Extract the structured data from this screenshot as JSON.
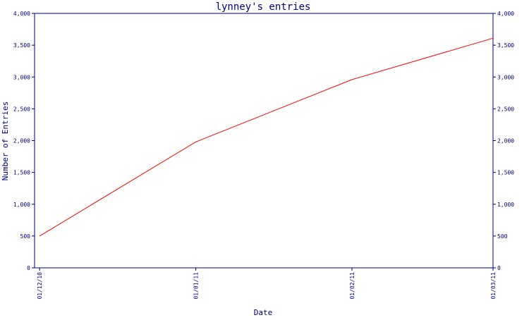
{
  "chart_data": {
    "type": "line",
    "title": "lynney's entries",
    "xlabel": "Date",
    "ylabel": "Number of Entries",
    "x_ticks": [
      "01/12/10",
      "01/01/11",
      "01/02/11",
      "01/03/11"
    ],
    "y_ticks": [
      "0",
      "500",
      "1,000",
      "1,500",
      "2,000",
      "2,500",
      "3,000",
      "3,500",
      "4,000"
    ],
    "ylim": [
      0,
      4000
    ],
    "xlim": [
      "2010-11-30",
      "2011-03-01"
    ],
    "y_axis_right_duplicate": true,
    "grid": false,
    "legend": "none",
    "series": [
      {
        "x": [
          "2010-12-01",
          "2011-01-01",
          "2011-02-01",
          "2011-03-01"
        ],
        "values": [
          500,
          1980,
          2960,
          3610
        ],
        "color": "#ff0000"
      }
    ],
    "colors": {
      "axis": "#000080",
      "text": "#000080",
      "background": "#ffffff"
    }
  }
}
